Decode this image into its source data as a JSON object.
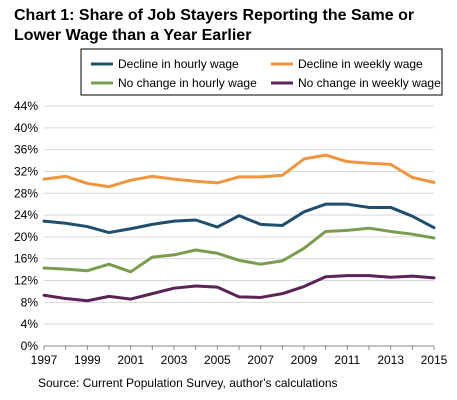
{
  "chart_data": {
    "type": "line",
    "title": "Chart 1: Share of Job Stayers Reporting the Same or Lower Wage than a Year Earlier",
    "source": "Source: Current Population Survey, author's calculations",
    "x": [
      1997,
      1998,
      1999,
      2000,
      2001,
      2002,
      2003,
      2004,
      2005,
      2006,
      2007,
      2008,
      2009,
      2010,
      2011,
      2012,
      2013,
      2014,
      2015
    ],
    "x_tick_labels": [
      "1997",
      "1999",
      "2001",
      "2003",
      "2005",
      "2007",
      "2009",
      "2011",
      "2013",
      "2015"
    ],
    "y_tick_labels": [
      "0%",
      "4%",
      "8%",
      "12%",
      "16%",
      "20%",
      "24%",
      "28%",
      "32%",
      "36%",
      "40%",
      "44%"
    ],
    "ylim": [
      0,
      44
    ],
    "grid": "horizontal",
    "legend_position": "top",
    "series": [
      {
        "name": "Decline in hourly wage",
        "color": "#1f4e6e",
        "values": [
          22.9,
          22.5,
          21.9,
          20.8,
          21.5,
          22.3,
          22.9,
          23.1,
          21.8,
          23.9,
          22.3,
          22.1,
          24.6,
          26.0,
          26.0,
          25.4,
          25.4,
          23.8,
          21.7
        ]
      },
      {
        "name": "Decline in weekly wage",
        "color": "#f0953d",
        "values": [
          30.6,
          31.1,
          29.8,
          29.2,
          30.4,
          31.1,
          30.6,
          30.2,
          29.9,
          31.0,
          31.0,
          31.3,
          34.3,
          35.0,
          33.8,
          33.5,
          33.3,
          30.9,
          30.0
        ]
      },
      {
        "name": "No change in hourly wage",
        "color": "#7b9c4d",
        "values": [
          14.3,
          14.1,
          13.8,
          15.0,
          13.6,
          16.3,
          16.7,
          17.6,
          17.0,
          15.7,
          15.0,
          15.6,
          17.9,
          21.0,
          21.2,
          21.6,
          21.0,
          20.5,
          19.8
        ]
      },
      {
        "name": "No change in weekly wage",
        "color": "#5b2356",
        "values": [
          9.3,
          8.7,
          8.3,
          9.1,
          8.6,
          9.6,
          10.6,
          11.0,
          10.8,
          9.0,
          8.9,
          9.6,
          10.9,
          12.7,
          12.9,
          12.9,
          12.6,
          12.8,
          12.5
        ]
      }
    ]
  }
}
